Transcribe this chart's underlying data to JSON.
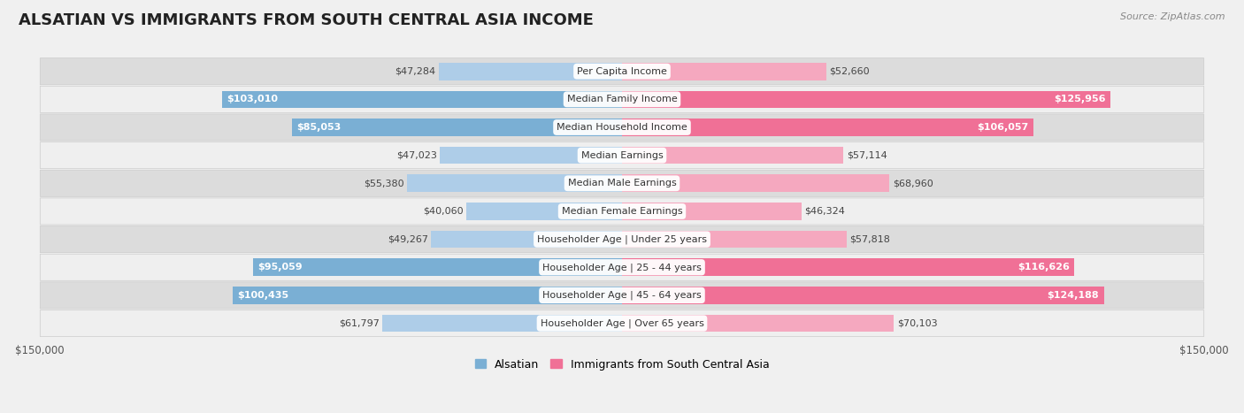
{
  "title": "ALSATIAN VS IMMIGRANTS FROM SOUTH CENTRAL ASIA INCOME",
  "source": "Source: ZipAtlas.com",
  "categories": [
    "Per Capita Income",
    "Median Family Income",
    "Median Household Income",
    "Median Earnings",
    "Median Male Earnings",
    "Median Female Earnings",
    "Householder Age | Under 25 years",
    "Householder Age | 25 - 44 years",
    "Householder Age | 45 - 64 years",
    "Householder Age | Over 65 years"
  ],
  "alsatian_values": [
    47284,
    103010,
    85053,
    47023,
    55380,
    40060,
    49267,
    95059,
    100435,
    61797
  ],
  "immigrant_values": [
    52660,
    125956,
    106057,
    57114,
    68960,
    46324,
    57818,
    116626,
    124188,
    70103
  ],
  "alsatian_labels": [
    "$47,284",
    "$103,010",
    "$85,053",
    "$47,023",
    "$55,380",
    "$40,060",
    "$49,267",
    "$95,059",
    "$100,435",
    "$61,797"
  ],
  "immigrant_labels": [
    "$52,660",
    "$125,956",
    "$106,057",
    "$57,114",
    "$68,960",
    "$46,324",
    "$57,818",
    "$116,626",
    "$124,188",
    "$70,103"
  ],
  "alsatian_color": "#7aafd4",
  "immigrant_color": "#f07096",
  "alsatian_color_light": "#aecde8",
  "immigrant_color_light": "#f5a8bf",
  "als_white_threshold": 75000,
  "imm_white_threshold": 75000,
  "max_value": 150000,
  "legend_alsatian": "Alsatian",
  "legend_immigrant": "Immigrants from South Central Asia",
  "background_color": "#f0f0f0",
  "row_bg_dark": "#dcdcdc",
  "row_bg_light": "#efefef",
  "title_fontsize": 13,
  "label_fontsize": 8,
  "cat_fontsize": 8,
  "source_fontsize": 8
}
